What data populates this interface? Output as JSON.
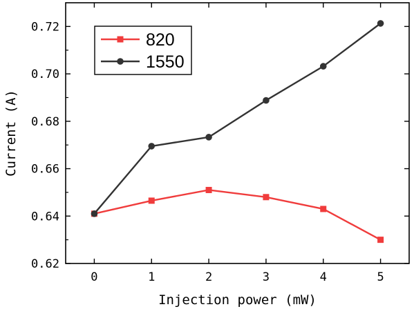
{
  "chart_data": {
    "type": "line",
    "xlabel": "Injection power (mW)",
    "ylabel": "Current (A)",
    "x": [
      0,
      1,
      2,
      3,
      4,
      5
    ],
    "xlim": [
      -0.5,
      5.5
    ],
    "ylim": [
      0.62,
      0.73
    ],
    "xticks": [
      "0",
      "1",
      "2",
      "3",
      "4",
      "5"
    ],
    "yticks": [
      "0.62",
      "0.64",
      "0.66",
      "0.68",
      "0.70",
      "0.72"
    ],
    "grid": false,
    "legend_position": "top-left",
    "series": [
      {
        "name": "820",
        "color": "#f03c3c",
        "marker": "square",
        "values": [
          0.641,
          0.6465,
          0.651,
          0.648,
          0.643,
          0.63
        ]
      },
      {
        "name": "1550",
        "color": "#333333",
        "marker": "circle",
        "values": [
          0.641,
          0.6695,
          0.6733,
          0.6888,
          0.7032,
          0.7213
        ]
      }
    ]
  }
}
